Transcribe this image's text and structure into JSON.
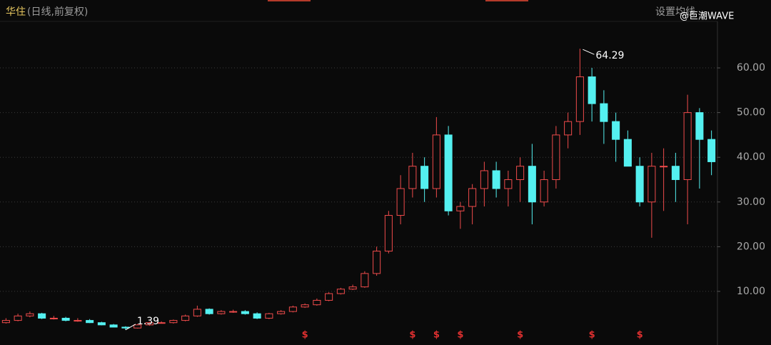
{
  "chart_data": {
    "type": "candlestick",
    "title": "华住",
    "subtitle": "(日线,前复权)",
    "settings_label": "设置均线",
    "watermark": "@巨潮WAVE",
    "up_color": "#ef4b4b",
    "down_color": "#54f0f0",
    "open": [
      3,
      3.5,
      4.5,
      5,
      4,
      4,
      3.5,
      3.5,
      3,
      2.5,
      2,
      1.8,
      2.5,
      3,
      3,
      3.5,
      4.5,
      6,
      5,
      5.5,
      5.5,
      5,
      4,
      5,
      5.5,
      6.5,
      7,
      8,
      9.5,
      10.5,
      11,
      14,
      19,
      27,
      33,
      38,
      33,
      45,
      28,
      29,
      33,
      37,
      33,
      35,
      38,
      30,
      35,
      45,
      48,
      58,
      52,
      48,
      44,
      38,
      30,
      38,
      38,
      35,
      50,
      44
    ],
    "high": [
      4,
      5,
      5.5,
      5.2,
      4.5,
      4.3,
      4,
      3.8,
      3.2,
      2.7,
      2.2,
      2.7,
      3.2,
      3.3,
      3.7,
      4.8,
      6.8,
      6.2,
      5.8,
      5.9,
      5.8,
      5.3,
      5.2,
      5.8,
      6.8,
      7.3,
      8.4,
      9.8,
      10.8,
      11.5,
      14.5,
      20,
      28,
      36,
      41,
      40,
      49,
      47,
      30,
      34,
      39,
      39,
      37,
      40,
      43,
      37,
      47,
      50,
      64.29,
      60,
      55,
      50,
      46,
      40,
      41,
      42,
      41,
      54,
      51,
      46
    ],
    "low": [
      2.8,
      3.3,
      4.2,
      3.8,
      3.7,
      3.3,
      3.2,
      2.9,
      2.4,
      2,
      1.39,
      1.7,
      2.3,
      2.8,
      2.8,
      3.3,
      4.3,
      4.8,
      4.8,
      5.2,
      4.8,
      3.8,
      3.8,
      4.8,
      5.3,
      6.3,
      6.8,
      7.8,
      9.3,
      10.3,
      10.8,
      13.5,
      18.5,
      25,
      31,
      30,
      31,
      27,
      24,
      25,
      29,
      31,
      29,
      30,
      25,
      29,
      33,
      42,
      45,
      48,
      43,
      39,
      38,
      29,
      22,
      28,
      30,
      25,
      33,
      36
    ],
    "close": [
      3.5,
      4.5,
      5,
      4,
      4,
      3.5,
      3.5,
      3,
      2.5,
      2,
      1.8,
      2.5,
      3,
      3,
      3.5,
      4.5,
      6,
      5,
      5.5,
      5.5,
      5,
      4,
      5,
      5.5,
      6.5,
      7,
      8,
      9.5,
      10.5,
      11,
      14,
      19,
      27,
      33,
      38,
      33,
      45,
      28,
      29,
      33,
      37,
      33,
      35,
      38,
      30,
      35,
      45,
      48,
      58,
      52,
      48,
      44,
      38,
      30,
      38,
      38,
      35,
      50,
      44,
      39
    ],
    "max_index": 48,
    "min_index": 10,
    "dividend_symbol": "$",
    "dividend_index": [
      25,
      34,
      36,
      38,
      43,
      49,
      53
    ],
    "ylim": [
      -2,
      68
    ],
    "yticks": [
      {
        "value": 10,
        "label": "10.00"
      },
      {
        "value": 20,
        "label": "20.00"
      },
      {
        "value": 30,
        "label": "30.00"
      },
      {
        "value": 40,
        "label": "40.00"
      },
      {
        "value": 50,
        "label": "50.00"
      },
      {
        "value": 60,
        "label": "60.00"
      }
    ],
    "grid": true
  }
}
